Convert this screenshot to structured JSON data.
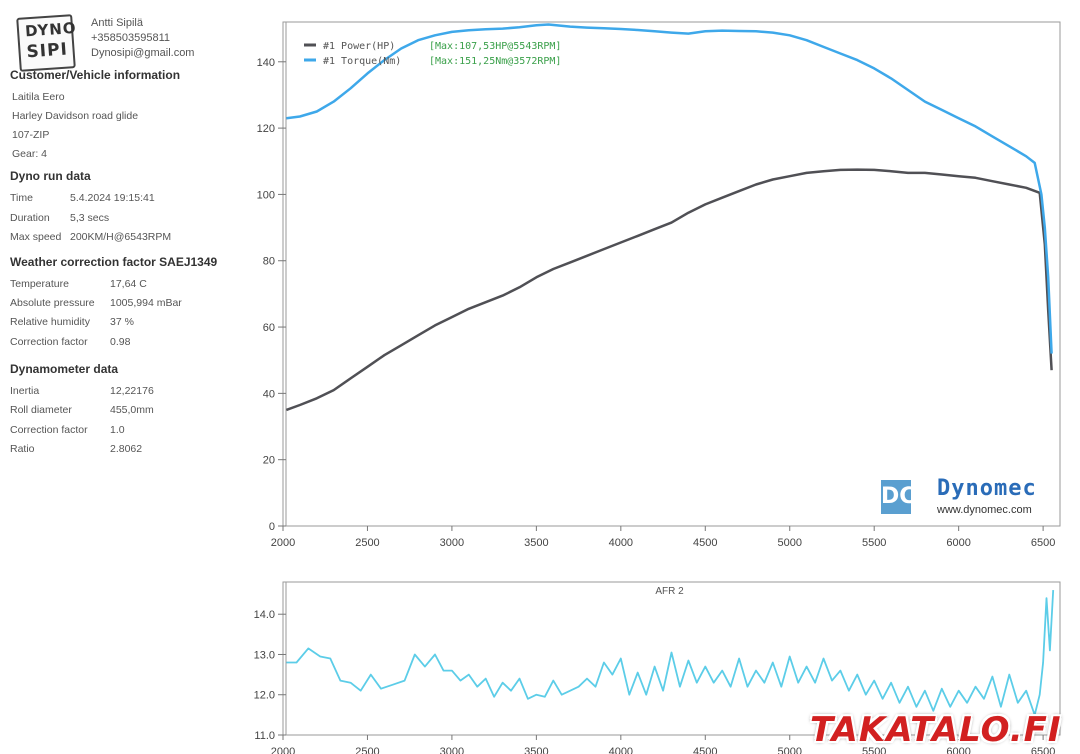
{
  "header": {
    "logo_line1": "DYNO",
    "logo_line2": "SIPI",
    "operator_name": "Antti Sipilä",
    "phone": "+358503595811",
    "email": "Dynosipi@gmail.com"
  },
  "customer": {
    "title": "Customer/Vehicle information",
    "lines": [
      "Laitila Eero",
      "Harley Davidson road glide",
      "107-ZIP",
      "Gear: 4"
    ]
  },
  "run": {
    "title": "Dyno run data",
    "rows": [
      {
        "label": "Time",
        "value": "5.4.2024 19:15:41"
      },
      {
        "label": "Duration",
        "value": "5,3 secs"
      },
      {
        "label": "Max speed",
        "value": "200KM/H@6543RPM"
      }
    ]
  },
  "weather": {
    "title": "Weather correction factor SAEJ1349",
    "rows": [
      {
        "label": "Temperature",
        "value": "17,64 C"
      },
      {
        "label": "Absolute pressure",
        "value": "1005,994 mBar"
      },
      {
        "label": "Relative humidity",
        "value": "37 %"
      },
      {
        "label": "Correction factor",
        "value": "0.98"
      }
    ]
  },
  "dyno": {
    "title": "Dynamometer data",
    "rows": [
      {
        "label": "Inertia",
        "value": "12,22176"
      },
      {
        "label": "Roll diameter",
        "value": "455,0mm"
      },
      {
        "label": "Correction factor",
        "value": "1.0"
      },
      {
        "label": "Ratio",
        "value": "2.8062"
      }
    ]
  },
  "brand": {
    "mark": "DC",
    "name": "Dynomec",
    "url": "www.dynomec.com"
  },
  "watermark": "TAKATALO.FI",
  "chart_data": [
    {
      "type": "line",
      "xlim": [
        2000,
        6600
      ],
      "ylim": [
        0,
        152
      ],
      "x_ticks": [
        2000,
        2500,
        3000,
        3500,
        4000,
        4500,
        5000,
        5500,
        6000,
        6500
      ],
      "y_ticks": [
        0,
        20,
        40,
        60,
        80,
        100,
        120,
        140
      ],
      "grid": false,
      "legend": "top-left",
      "series": [
        {
          "name": "#1 Power(HP)",
          "annotation": "[Max:107,53HP@5543RPM]",
          "color": "#505055",
          "x": [
            2020,
            2100,
            2200,
            2300,
            2400,
            2500,
            2600,
            2700,
            2800,
            2900,
            3000,
            3100,
            3200,
            3300,
            3400,
            3500,
            3600,
            3700,
            3800,
            3900,
            4000,
            4100,
            4200,
            4300,
            4400,
            4500,
            4600,
            4700,
            4800,
            4900,
            5000,
            5100,
            5200,
            5300,
            5400,
            5500,
            5600,
            5700,
            5800,
            5900,
            6000,
            6100,
            6200,
            6300,
            6400,
            6480,
            6510,
            6530,
            6550
          ],
          "y": [
            35,
            36.5,
            38.5,
            41,
            44.5,
            48,
            51.5,
            54.5,
            57.5,
            60.5,
            63,
            65.5,
            67.5,
            69.5,
            72,
            75,
            77.5,
            79.5,
            81.5,
            83.5,
            85.5,
            87.5,
            89.5,
            91.5,
            94.5,
            97,
            99,
            101,
            103,
            104.5,
            105.5,
            106.5,
            107,
            107.4,
            107.5,
            107.4,
            107,
            106.5,
            106.5,
            106,
            105.5,
            105,
            104,
            103,
            102,
            100.5,
            85,
            65,
            47
          ]
        },
        {
          "name": "#1 Torque(Nm)",
          "annotation": "[Max:151,25Nm@3572RPM]",
          "color": "#3ea8ea",
          "x": [
            2020,
            2100,
            2200,
            2300,
            2400,
            2500,
            2600,
            2700,
            2800,
            2900,
            3000,
            3100,
            3200,
            3300,
            3400,
            3500,
            3572,
            3700,
            3800,
            3900,
            4000,
            4100,
            4200,
            4300,
            4400,
            4500,
            4600,
            4700,
            4800,
            4900,
            5000,
            5100,
            5200,
            5300,
            5400,
            5500,
            5600,
            5700,
            5800,
            5900,
            6000,
            6100,
            6200,
            6300,
            6400,
            6450,
            6490,
            6510,
            6530,
            6550
          ],
          "y": [
            123,
            123.5,
            125,
            128,
            132,
            136.5,
            140.5,
            144,
            146.5,
            148,
            149,
            149.5,
            149.8,
            150,
            150.4,
            151,
            151.25,
            150.6,
            150.3,
            150.1,
            149.9,
            149.6,
            149.2,
            148.8,
            148.5,
            149.2,
            149.4,
            149.3,
            149.2,
            148.8,
            148,
            146.5,
            144.5,
            142.5,
            140.5,
            138,
            135,
            131.5,
            128,
            125.5,
            123,
            120.5,
            117.5,
            114.5,
            111.5,
            109.5,
            100,
            90,
            75,
            52
          ]
        }
      ]
    },
    {
      "type": "line",
      "title": "AFR 2",
      "xlim": [
        2000,
        6600
      ],
      "ylim": [
        11.0,
        14.8
      ],
      "x_ticks": [
        2000,
        2500,
        3000,
        3500,
        4000,
        4500,
        5000,
        5500,
        6000,
        6500
      ],
      "y_ticks": [
        11.0,
        12.0,
        13.0,
        14.0
      ],
      "y_tick_labels": [
        "11.0",
        "12.0",
        "13.0",
        "14.0"
      ],
      "grid": false,
      "series": [
        {
          "name": "AFR 2",
          "color": "#5ccde8",
          "x": [
            2020,
            2080,
            2150,
            2220,
            2280,
            2340,
            2400,
            2460,
            2520,
            2580,
            2650,
            2720,
            2780,
            2840,
            2900,
            2950,
            3000,
            3050,
            3100,
            3150,
            3200,
            3250,
            3300,
            3350,
            3400,
            3450,
            3500,
            3550,
            3600,
            3650,
            3700,
            3750,
            3800,
            3850,
            3900,
            3950,
            4000,
            4050,
            4100,
            4150,
            4200,
            4250,
            4300,
            4350,
            4400,
            4450,
            4500,
            4550,
            4600,
            4650,
            4700,
            4750,
            4800,
            4850,
            4900,
            4950,
            5000,
            5050,
            5100,
            5150,
            5200,
            5250,
            5300,
            5350,
            5400,
            5450,
            5500,
            5550,
            5600,
            5650,
            5700,
            5750,
            5800,
            5850,
            5900,
            5950,
            6000,
            6050,
            6100,
            6150,
            6200,
            6250,
            6300,
            6350,
            6400,
            6450,
            6480,
            6500,
            6520,
            6540,
            6560
          ],
          "y": [
            12.8,
            12.8,
            13.15,
            12.95,
            12.9,
            12.35,
            12.3,
            12.1,
            12.5,
            12.15,
            12.25,
            12.35,
            13.0,
            12.7,
            13.0,
            12.6,
            12.6,
            12.35,
            12.5,
            12.2,
            12.4,
            11.95,
            12.3,
            12.1,
            12.4,
            11.9,
            12.0,
            11.95,
            12.35,
            12.0,
            12.1,
            12.2,
            12.4,
            12.2,
            12.8,
            12.5,
            12.9,
            12.0,
            12.55,
            12.0,
            12.7,
            12.1,
            13.05,
            12.2,
            12.85,
            12.3,
            12.7,
            12.3,
            12.6,
            12.2,
            12.9,
            12.2,
            12.6,
            12.3,
            12.8,
            12.2,
            12.95,
            12.3,
            12.7,
            12.3,
            12.9,
            12.35,
            12.6,
            12.1,
            12.5,
            12.0,
            12.35,
            11.9,
            12.3,
            11.8,
            12.2,
            11.7,
            12.1,
            11.6,
            12.15,
            11.7,
            12.1,
            11.8,
            12.2,
            11.9,
            12.45,
            11.7,
            12.5,
            11.8,
            12.1,
            11.5,
            12.0,
            12.8,
            14.4,
            13.1,
            14.6
          ]
        }
      ]
    }
  ]
}
